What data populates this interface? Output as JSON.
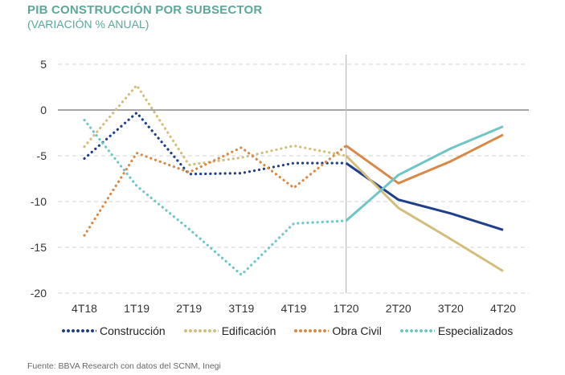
{
  "header": {
    "title": "PIB CONSTRUCCIÓN POR SUBSECTOR",
    "subtitle": "(VARIACIÓN % ANUAL)"
  },
  "footer": {
    "source": "Fuente: BBVA Research con datos del SCNM, Inegi"
  },
  "colors": {
    "title": "#5aa89b",
    "grid": "#d0d0d0",
    "axis": "#888888"
  },
  "chart_data": {
    "type": "line",
    "title": "PIB CONSTRUCCIÓN POR SUBSECTOR",
    "subtitle": "(VARIACIÓN % ANUAL)",
    "xlabel": "",
    "ylabel": "",
    "ylim": [
      -20,
      5
    ],
    "yticks": [
      5,
      0,
      -5,
      -10,
      -15,
      -20
    ],
    "ytick_labels": [
      "5",
      "0",
      "-5",
      "-10",
      "-15",
      "-20"
    ],
    "categories": [
      "4T18",
      "1T19",
      "2T19",
      "3T19",
      "4T19",
      "1T20",
      "2T20",
      "3T20",
      "4T20"
    ],
    "forecast_start": "1T20",
    "grid": true,
    "legend_position": "bottom",
    "series": [
      {
        "name": "Construcción",
        "color": "#1f3f8b",
        "values": [
          -5.3,
          -0.3,
          -7.0,
          -6.9,
          -5.8,
          -5.8,
          -9.8,
          -11.3,
          -13.1
        ]
      },
      {
        "name": "Edificación",
        "color": "#d3bd7b",
        "values": [
          -4.0,
          2.7,
          -6.0,
          -5.2,
          -3.9,
          -5.0,
          -10.7,
          -14.1,
          -17.6
        ]
      },
      {
        "name": "Obra Civil",
        "color": "#d98845",
        "values": [
          -13.7,
          -4.7,
          -6.8,
          -4.1,
          -8.5,
          -3.9,
          -8.0,
          -5.6,
          -2.7
        ]
      },
      {
        "name": "Especializados",
        "color": "#6fc6c5",
        "values": [
          -1.1,
          -8.3,
          -13.0,
          -18.0,
          -12.4,
          -12.1,
          -7.1,
          -4.2,
          -1.8
        ]
      }
    ]
  }
}
